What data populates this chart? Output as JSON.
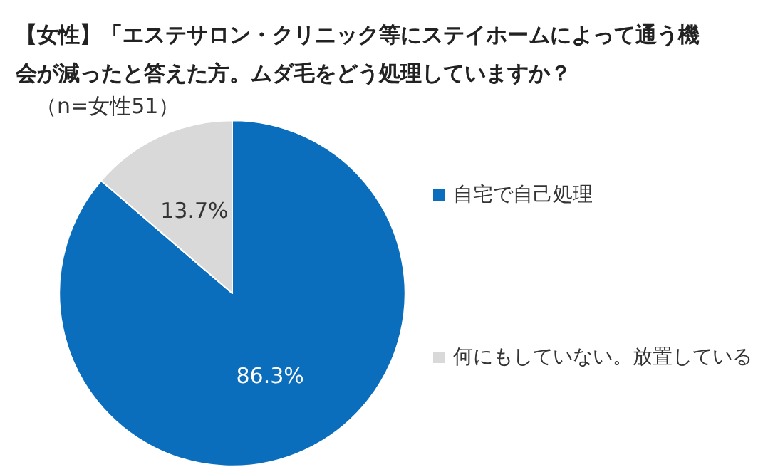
{
  "chart_data": {
    "type": "pie",
    "title": "【女性】「エステサロン・クリニック等にステイホームによって通う機会が減ったと答えた方。ムダ毛をどう処理していますか？",
    "subtitle": "（n=女性51）",
    "categories": [
      "自宅で自己処理",
      "何にもしていない。放置している"
    ],
    "values": [
      86.3,
      13.7
    ],
    "colors": [
      "#0a6ebd",
      "#d9d9d9"
    ],
    "value_labels": [
      "86.3%",
      "13.7%"
    ],
    "legend": "right"
  }
}
